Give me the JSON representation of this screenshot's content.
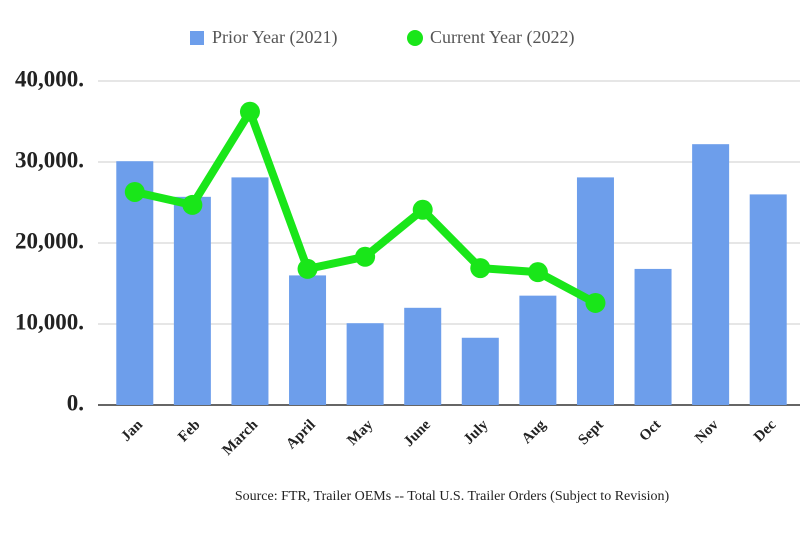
{
  "chart_data": {
    "type": "bar_line",
    "categories": [
      "Jan",
      "Feb",
      "March",
      "April",
      "May",
      "June",
      "July",
      "Aug",
      "Sept",
      "Oct",
      "Nov",
      "Dec"
    ],
    "series": [
      {
        "name": "Prior Year (2021)",
        "type": "bar",
        "color": "#6d9eeb",
        "values": [
          30100,
          25700,
          28100,
          16000,
          10100,
          12000,
          8300,
          13500,
          28100,
          16800,
          32200,
          26000
        ]
      },
      {
        "name": "Current Year (2022)",
        "type": "line",
        "color": "#19e619",
        "values": [
          26300,
          24700,
          36200,
          16800,
          18300,
          24100,
          16900,
          16400,
          12600,
          null,
          null,
          null
        ]
      }
    ],
    "ylim": [
      0,
      40000
    ],
    "yticks": [
      {
        "value": 0,
        "label": "0."
      },
      {
        "value": 10000,
        "label": "10,000."
      },
      {
        "value": 20000,
        "label": "20,000."
      },
      {
        "value": 30000,
        "label": "30,000."
      },
      {
        "value": 40000,
        "label": "40,000."
      }
    ],
    "grid": true,
    "legend": "top",
    "source": "Source: FTR, Trailer OEMs -- Total U.S. Trailer Orders (Subject to Revision)"
  }
}
